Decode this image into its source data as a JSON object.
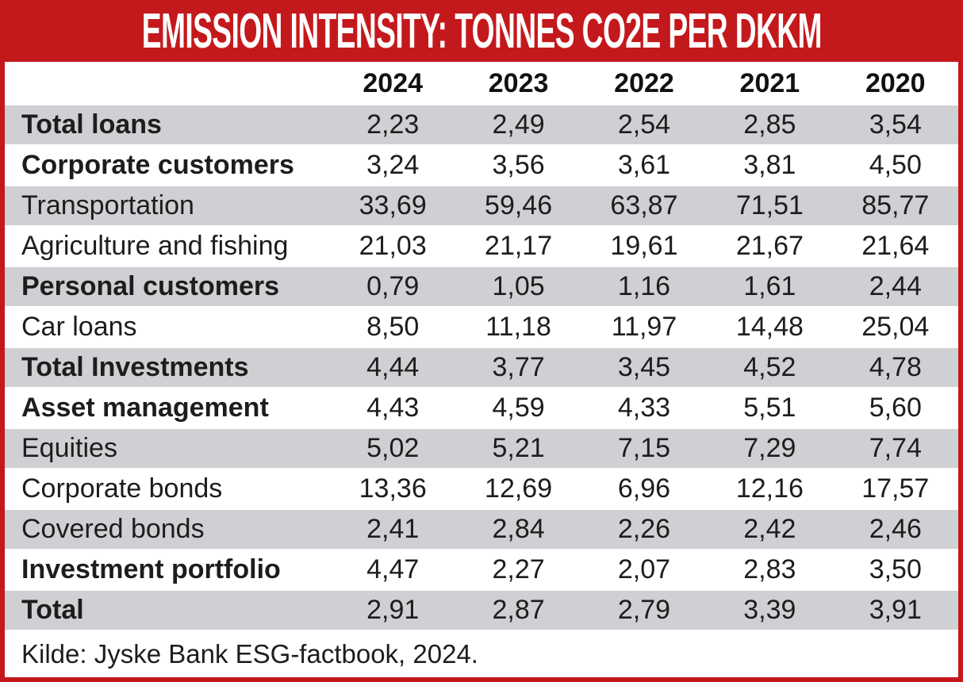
{
  "title": "EMISSION INTENSITY: TONNES CO2E PER DKKM",
  "source_note": "Kilde: Jyske Bank ESG-factbook, 2024.",
  "colors": {
    "accent_red": "#C4191C",
    "row_stripe_gray": "#CFD0D4",
    "title_text": "#FFFFFF",
    "body_text": "#1D1D1B"
  },
  "chart_data": {
    "type": "table",
    "title": "EMISSION INTENSITY: TONNES CO2E PER DKKM",
    "unit": "tonnes CO2e per DKKm",
    "columns": [
      "2024",
      "2023",
      "2022",
      "2021",
      "2020"
    ],
    "rows": [
      {
        "label": "Total loans",
        "bold": true,
        "values": [
          "2,23",
          "2,49",
          "2,54",
          "2,85",
          "3,54"
        ]
      },
      {
        "label": "Corporate customers",
        "bold": true,
        "values": [
          "3,24",
          "3,56",
          "3,61",
          "3,81",
          "4,50"
        ]
      },
      {
        "label": "Transportation",
        "bold": false,
        "values": [
          "33,69",
          "59,46",
          "63,87",
          "71,51",
          "85,77"
        ]
      },
      {
        "label": "Agriculture and fishing",
        "bold": false,
        "values": [
          "21,03",
          "21,17",
          "19,61",
          "21,67",
          "21,64"
        ]
      },
      {
        "label": "Personal customers",
        "bold": true,
        "values": [
          "0,79",
          "1,05",
          "1,16",
          "1,61",
          "2,44"
        ]
      },
      {
        "label": "Car loans",
        "bold": false,
        "values": [
          "8,50",
          "11,18",
          "11,97",
          "14,48",
          "25,04"
        ]
      },
      {
        "label": "Total Investments",
        "bold": true,
        "values": [
          "4,44",
          "3,77",
          "3,45",
          "4,52",
          "4,78"
        ]
      },
      {
        "label": "Asset management",
        "bold": true,
        "values": [
          "4,43",
          "4,59",
          "4,33",
          "5,51",
          "5,60"
        ]
      },
      {
        "label": "Equities",
        "bold": false,
        "values": [
          "5,02",
          "5,21",
          "7,15",
          "7,29",
          "7,74"
        ]
      },
      {
        "label": "Corporate bonds",
        "bold": false,
        "values": [
          "13,36",
          "12,69",
          "6,96",
          "12,16",
          "17,57"
        ]
      },
      {
        "label": "Covered bonds",
        "bold": false,
        "values": [
          "2,41",
          "2,84",
          "2,26",
          "2,42",
          "2,46"
        ]
      },
      {
        "label": "Investment portfolio",
        "bold": true,
        "values": [
          "4,47",
          "2,27",
          "2,07",
          "2,83",
          "3,50"
        ]
      },
      {
        "label": "Total",
        "bold": true,
        "values": [
          "2,91",
          "2,87",
          "2,79",
          "3,39",
          "3,91"
        ]
      }
    ],
    "source": "Kilde: Jyske Bank ESG-factbook, 2024.",
    "layout": {
      "stripe_pattern": "alternating starting gray",
      "value_alignment": "center"
    }
  }
}
